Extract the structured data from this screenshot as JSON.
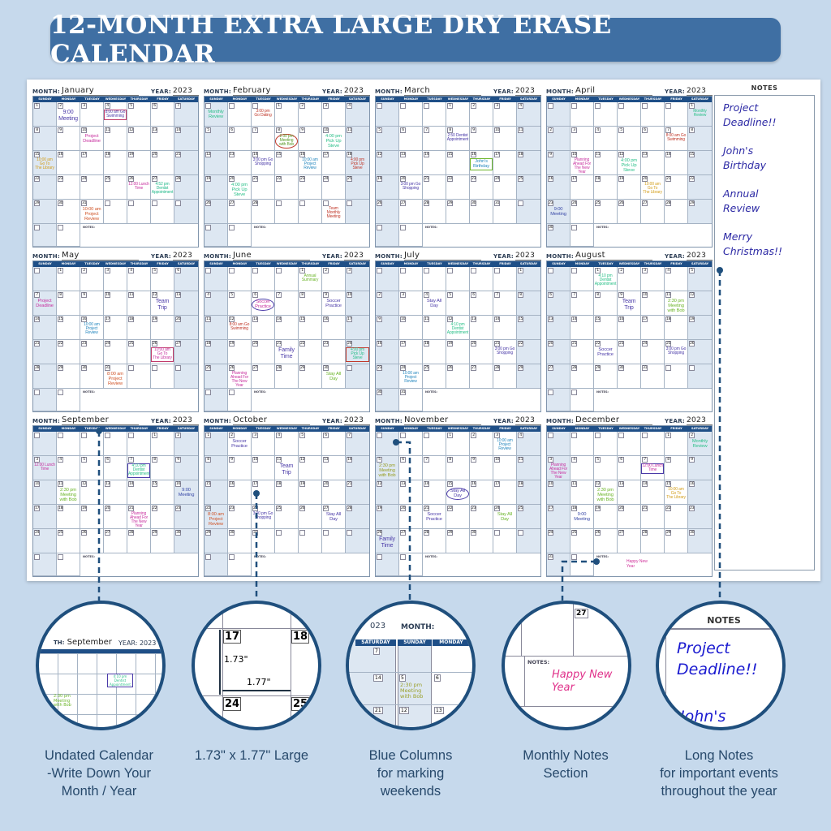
{
  "banner": {
    "title": "12-MONTH EXTRA LARGE DRY ERASE CALENDAR"
  },
  "colors": {
    "background": "#c6d9ec",
    "banner": "#3f6fa3",
    "header_bar": "#1f4f87",
    "weekend_column": "#dde7f2",
    "note_ink": "#2d2aa5"
  },
  "calendar": {
    "month_label": "MONTH:",
    "year_label": "YEAR:",
    "notes_label": "NOTES:",
    "weekdays": [
      "SUNDAY",
      "MONDAY",
      "TUESDAY",
      "WEDNESDAY",
      "THURSDAY",
      "FRIDAY",
      "SATURDAY"
    ],
    "months": [
      {
        "name": "January",
        "year": "2023",
        "events": [
          {
            "day": 2,
            "text": "9:00\nMeeting",
            "color": "#4a3aa8",
            "size": "large"
          },
          {
            "day": 4,
            "text": "8:00 am Go\nSwimming",
            "color": "#4a3aa8",
            "outline": "box",
            "outline_color": "#c03a6a"
          },
          {
            "day": 10,
            "text": "Project\nDeadline",
            "color": "#c832a0",
            "size": "medium"
          },
          {
            "day": 15,
            "text": "10:00 am\nGo To\nThe Library",
            "color": "#d4a020"
          },
          {
            "day": 26,
            "text": "12:00 Lunch\nTime",
            "color": "#c832a0"
          },
          {
            "day": 27,
            "text": "4:52 pm\nDentist\nAppointment",
            "color": "#22b98a"
          },
          {
            "day": 31,
            "text": "10:00 am\nProject\nReview",
            "color": "#d0562a",
            "size": "medium"
          }
        ]
      },
      {
        "name": "February",
        "year": "2023",
        "events": [
          {
            "week": 1,
            "weekday": 0,
            "text": "Monthly\nReview",
            "color": "#2cc08a",
            "size": "medium"
          },
          {
            "week": 1,
            "weekday": 2,
            "text": "3:00 pm\nGo Dating",
            "color": "#c0392b"
          },
          {
            "day": 8,
            "text": "2:30 pm\nMeeting\nwith Bob",
            "color": "#5a9a2a",
            "outline": "circle",
            "outline_color": "#c0392b"
          },
          {
            "day": 10,
            "text": "4:00 pm\nPick Up\nSteve",
            "color": "#2cc08a",
            "size": "medium"
          },
          {
            "day": 14,
            "text": "3:00 pm Go\nShopping",
            "color": "#4a3aa8"
          },
          {
            "day": 16,
            "text": "10:00 am\nProject\nReview",
            "color": "#2a8ac0"
          },
          {
            "day": 18,
            "text": "4:00 pm\nPick Up\nSteve",
            "color": "#c0392b"
          },
          {
            "day": 20,
            "text": "4:00 pm\nPick Up\nSteve",
            "color": "#2cc08a",
            "size": "medium"
          },
          {
            "week": 5,
            "weekday": 5,
            "text": "Team\nMonthly\nMeeting",
            "color": "#c0392b"
          }
        ]
      },
      {
        "name": "March",
        "year": "2023",
        "events": [
          {
            "day": 8,
            "text": "2:50 Dentist\nAppointment",
            "color": "#4a3aa8"
          },
          {
            "day": 16,
            "text": "John's\nBirthday",
            "color": "#2a8ac0",
            "size": "medium",
            "outline": "box",
            "outline_color": "#6cb52a"
          },
          {
            "day": 20,
            "text": "3:00 pm Go\nShopping",
            "color": "#4a3aa8"
          }
        ]
      },
      {
        "name": "April",
        "year": "2023",
        "events": [
          {
            "day": 1,
            "text": "Monthly\nReview",
            "color": "#2cc08a"
          },
          {
            "day": 7,
            "text": "8:00 am Go\nSwimming",
            "color": "#c0392b"
          },
          {
            "day": 10,
            "text": "Planning\nAhead For\nThe New Year",
            "color": "#c832a0"
          },
          {
            "day": 12,
            "text": "4:00 pm\nPick Up\nSteve",
            "color": "#2cc08a",
            "size": "medium"
          },
          {
            "day": 20,
            "text": "10:00 am\nGo To\nThe Library",
            "color": "#d4a020"
          },
          {
            "day": 23,
            "text": "9:00\nMeeting",
            "color": "#3a4aa8",
            "size": "medium"
          }
        ]
      },
      {
        "name": "May",
        "year": "2023",
        "events": [
          {
            "day": 7,
            "text": "Project\nDeadline",
            "color": "#c832a0",
            "size": "medium"
          },
          {
            "day": 12,
            "text": "Team\nTrip",
            "color": "#4a3aa8",
            "size": "large"
          },
          {
            "day": 16,
            "text": "10:00 am\nProject\nReview",
            "color": "#2a8ac0"
          },
          {
            "day": 26,
            "text": "10:00 am\nGo To\nThe Library",
            "color": "#c832a0",
            "outline": "box",
            "outline_color": "#c03a6a"
          },
          {
            "day": 31,
            "text": "8:00 am\nProject\nReview",
            "color": "#d0562a",
            "size": "medium"
          }
        ]
      },
      {
        "name": "June",
        "year": "2023",
        "events": [
          {
            "day": 1,
            "text": "Annual\nSummary",
            "color": "#6cb52a"
          },
          {
            "day": 6,
            "text": "Soccer\nPractice",
            "color": "#c832a0",
            "size": "medium",
            "outline": "circle",
            "outline_color": "#4a3aa8"
          },
          {
            "day": 9,
            "text": "Soccer\nPractice",
            "color": "#4a3aa8",
            "size": "medium"
          },
          {
            "day": 12,
            "text": "8:00 am Go\nSwimming",
            "color": "#c0392b"
          },
          {
            "day": 21,
            "text": "Family\nTime",
            "color": "#4a3aa8",
            "size": "large"
          },
          {
            "day": 24,
            "text": "4:00 pm\nPick Up\nSteve",
            "color": "#2cc08a",
            "outline": "box",
            "outline_color": "#c0392b"
          },
          {
            "day": 26,
            "text": "Planning\nAhead For\nThe New Year",
            "color": "#c832a0"
          },
          {
            "day": 30,
            "text": "Stay All\nDay",
            "color": "#6cb52a",
            "size": "medium"
          }
        ]
      },
      {
        "name": "July",
        "year": "2023",
        "events": [
          {
            "day": 4,
            "text": "Stay All\nDay",
            "color": "#4a3aa8",
            "size": "medium"
          },
          {
            "day": 12,
            "text": "4:10 pm\nDentist\nAppointment",
            "color": "#2cc08a"
          },
          {
            "day": 21,
            "text": "3:00 pm Go\nShopping",
            "color": "#4a3aa8"
          },
          {
            "day": 24,
            "text": "10:00 am\nProject\nReview",
            "color": "#2a8ac0"
          }
        ]
      },
      {
        "name": "August",
        "year": "2023",
        "events": [
          {
            "day": 1,
            "text": "4:10 pm\nDentist\nAppointment",
            "color": "#2cc08a"
          },
          {
            "day": 9,
            "text": "Team\nTrip",
            "color": "#4a3aa8",
            "size": "large"
          },
          {
            "day": 11,
            "text": "2:30 pm\nMeeting\nwith Bob",
            "color": "#6cb52a",
            "size": "medium"
          },
          {
            "day": 22,
            "text": "Soccer\nPractice",
            "color": "#4a3aa8",
            "size": "medium"
          },
          {
            "day": 25,
            "text": "3:00 pm Go\nShopping",
            "color": "#4a3aa8"
          }
        ]
      },
      {
        "name": "September",
        "year": "2023",
        "events": [
          {
            "day": 3,
            "text": "12:00 Lunch\nTime",
            "color": "#c832a0"
          },
          {
            "day": 7,
            "text": "4:10 pm\nDentist\nAppointment",
            "color": "#2cc08a",
            "outline": "box",
            "outline_color": "#4a3aa8"
          },
          {
            "day": 11,
            "text": "2:30 pm\nMeeting\nwith Bob",
            "color": "#6cb52a",
            "size": "medium"
          },
          {
            "day": 16,
            "text": "9:00\nMeeting",
            "color": "#3a4aa8",
            "size": "medium"
          },
          {
            "day": 21,
            "text": "Planning\nAhead For\nThe New Year",
            "color": "#c832a0"
          }
        ]
      },
      {
        "name": "October",
        "year": "2023",
        "events": [
          {
            "day": 2,
            "text": "Soccer\nPractice",
            "color": "#4a3aa8",
            "size": "medium"
          },
          {
            "day": 11,
            "text": "Team\nTrip",
            "color": "#4a3aa8",
            "size": "large"
          },
          {
            "day": 22,
            "text": "8:00 am\nProject\nReview",
            "color": "#d0562a",
            "size": "medium"
          },
          {
            "day": 24,
            "text": "3:00 pm Go\nShopping",
            "color": "#4a3aa8"
          },
          {
            "day": 27,
            "text": "Stay All\nDay",
            "color": "#4a3aa8",
            "size": "medium"
          }
        ]
      },
      {
        "name": "November",
        "year": "2023",
        "events": [
          {
            "day": 3,
            "text": "10:00 am\nProject\nReview",
            "color": "#2a8ac0"
          },
          {
            "day": 5,
            "text": "2:30 pm\nMeeting\nwith Bob",
            "color": "#9aa02a",
            "size": "medium"
          },
          {
            "day": 15,
            "text": "Stay All\nDay",
            "color": "#4a3aa8",
            "size": "medium",
            "outline": "circle",
            "outline_color": "#4a3aa8"
          },
          {
            "day": 21,
            "text": "Soccer\nPractice",
            "color": "#4a3aa8",
            "size": "medium"
          },
          {
            "day": 24,
            "text": "Stay All\nDay",
            "color": "#6cb52a",
            "size": "medium"
          },
          {
            "day": 26,
            "text": "Family\nTime",
            "color": "#4a3aa8",
            "size": "large"
          }
        ]
      },
      {
        "name": "December",
        "year": "2023",
        "notes": "Happy New\nYear",
        "events": [
          {
            "day": 2,
            "text": "Monthly\nReview",
            "color": "#2cc08a",
            "size": "medium"
          },
          {
            "day": 3,
            "text": "Planning\nAhead For\nThe New Year",
            "color": "#c832a0"
          },
          {
            "day": 7,
            "text": "12:00 Lunch\nTime",
            "color": "#c832a0",
            "outline": "box",
            "outline_color": "#4a3aa8"
          },
          {
            "day": 12,
            "text": "2:30 pm\nMeeting\nwith Bob",
            "color": "#6cb52a",
            "size": "medium"
          },
          {
            "day": 15,
            "text": "10:00 am\nGo To\nThe Library",
            "color": "#d4a020"
          },
          {
            "day": 18,
            "text": "9:00\nMeeting",
            "color": "#3a4aa8",
            "size": "medium"
          }
        ]
      }
    ]
  },
  "long_notes": {
    "title": "NOTES",
    "items": [
      "Project\nDeadline!!",
      "John's\nBirthday",
      "Annual\nReview",
      "Merry\nChristmas!!"
    ]
  },
  "features": [
    {
      "caption": "Undated Calendar\n-Write Down Your\nMonth / Year",
      "detail": {
        "month": "September",
        "year_label": "YEAR: 2023",
        "month_label": "TH:",
        "event": "4:10 pm\nDentist\nAppointment",
        "event2": "2:30 pm\nMeeting\nwith Bob"
      }
    },
    {
      "caption": "1.73\" x 1.77\" Large",
      "detail": {
        "days": [
          "17",
          "18",
          "24",
          "25"
        ],
        "height": "1.73\"",
        "width": "1.77\""
      }
    },
    {
      "caption": "Blue Columns\nfor marking\nweekends",
      "detail": {
        "year_frag": "023",
        "month_label": "MONTH:",
        "saturday": "SATURDAY",
        "sunday": "SUNDAY",
        "monday": "MONDAY",
        "sat_days": [
          "7",
          "14",
          "21"
        ],
        "sun_days": [
          "5",
          "12"
        ],
        "mon_days": [
          "6",
          "13"
        ],
        "event": "2:30 pm\nMeeting\nwith Bob"
      }
    },
    {
      "caption": "Monthly Notes\nSection",
      "detail": {
        "day": "27",
        "notes_label": "NOTES:",
        "note": "Happy New\nYear"
      }
    },
    {
      "caption": "Long Notes\nfor important events\nthroughout the year",
      "detail": {
        "title": "NOTES",
        "note": "Project\nDeadline!!",
        "note2": "John's"
      }
    }
  ]
}
